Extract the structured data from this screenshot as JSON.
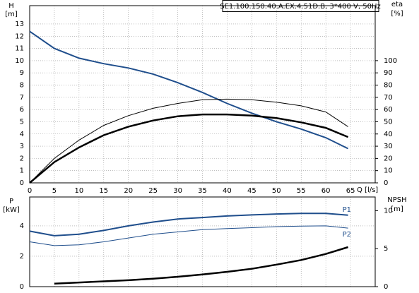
{
  "chart_data": [
    {
      "type": "line",
      "title": "SE1.100.150.40.A.EX.4.51D.B, 3*400 V, 50Hz",
      "ylabel": "H",
      "yunit": "[m]",
      "y2label": "eta",
      "y2unit": "[%]",
      "xlabel": "Q [l/s]",
      "x": [
        0,
        5,
        10,
        15,
        20,
        25,
        30,
        35,
        40,
        45,
        50,
        55,
        60,
        64.5
      ],
      "xlim": [
        0,
        70
      ],
      "xticks": [
        0,
        5,
        10,
        15,
        20,
        25,
        30,
        35,
        40,
        45,
        50,
        55,
        60,
        65
      ],
      "ylim": [
        0,
        14.5
      ],
      "yticks": [
        0,
        1,
        2,
        3,
        4,
        5,
        6,
        7,
        8,
        9,
        10,
        11,
        12,
        13
      ],
      "y2lim": [
        0,
        145
      ],
      "y2ticks": [
        0,
        10,
        20,
        30,
        40,
        50,
        60,
        70,
        80,
        90,
        100
      ],
      "grid": true,
      "series": [
        {
          "color": "#1f4e8c",
          "width": 2,
          "axis": "y",
          "values": [
            12.4,
            11,
            10.2,
            9.75,
            9.4,
            8.9,
            8.2,
            7.4,
            6.5,
            5.7,
            5.0,
            4.4,
            3.7,
            2.8
          ]
        },
        {
          "color": "#000000",
          "width": 1,
          "axis": "y2",
          "values": [
            0,
            20,
            35,
            47,
            55,
            61,
            65,
            68,
            68.5,
            68,
            66,
            63,
            58,
            46
          ]
        },
        {
          "color": "#000000",
          "width": 2.5,
          "axis": "y2",
          "values": [
            0,
            17,
            29,
            39,
            46,
            51,
            54.5,
            56,
            56,
            55,
            53,
            49.5,
            45,
            37.5
          ]
        }
      ]
    },
    {
      "type": "line",
      "ylabel": "P",
      "yunit": "[kW]",
      "y2label": "NPSH",
      "y2unit": "[m]",
      "x": [
        0,
        5,
        10,
        15,
        20,
        25,
        30,
        35,
        40,
        45,
        50,
        55,
        60,
        64.5
      ],
      "xlim": [
        0,
        70
      ],
      "ylim": [
        0,
        5.9
      ],
      "yticks": [
        0,
        2,
        4
      ],
      "y2lim": [
        0,
        11.8
      ],
      "y2ticks": [
        0,
        5,
        10
      ],
      "grid": true,
      "series": [
        {
          "name": "P1",
          "color": "#1f4e8c",
          "width": 2,
          "axis": "y",
          "values": [
            3.65,
            3.35,
            3.45,
            3.7,
            4.0,
            4.25,
            4.45,
            4.55,
            4.65,
            4.72,
            4.78,
            4.82,
            4.82,
            4.7
          ]
        },
        {
          "name": "P2",
          "color": "#1f4e8c",
          "width": 1,
          "axis": "y",
          "values": [
            2.95,
            2.7,
            2.75,
            2.95,
            3.2,
            3.45,
            3.6,
            3.75,
            3.82,
            3.88,
            3.95,
            3.98,
            4.0,
            3.85
          ]
        },
        {
          "color": "#000000",
          "width": 2.5,
          "axis": "y2",
          "values": [
            null,
            0.4,
            0.55,
            0.7,
            0.85,
            1.05,
            1.3,
            1.6,
            1.95,
            2.35,
            2.9,
            3.5,
            4.3,
            5.2
          ]
        }
      ]
    }
  ]
}
